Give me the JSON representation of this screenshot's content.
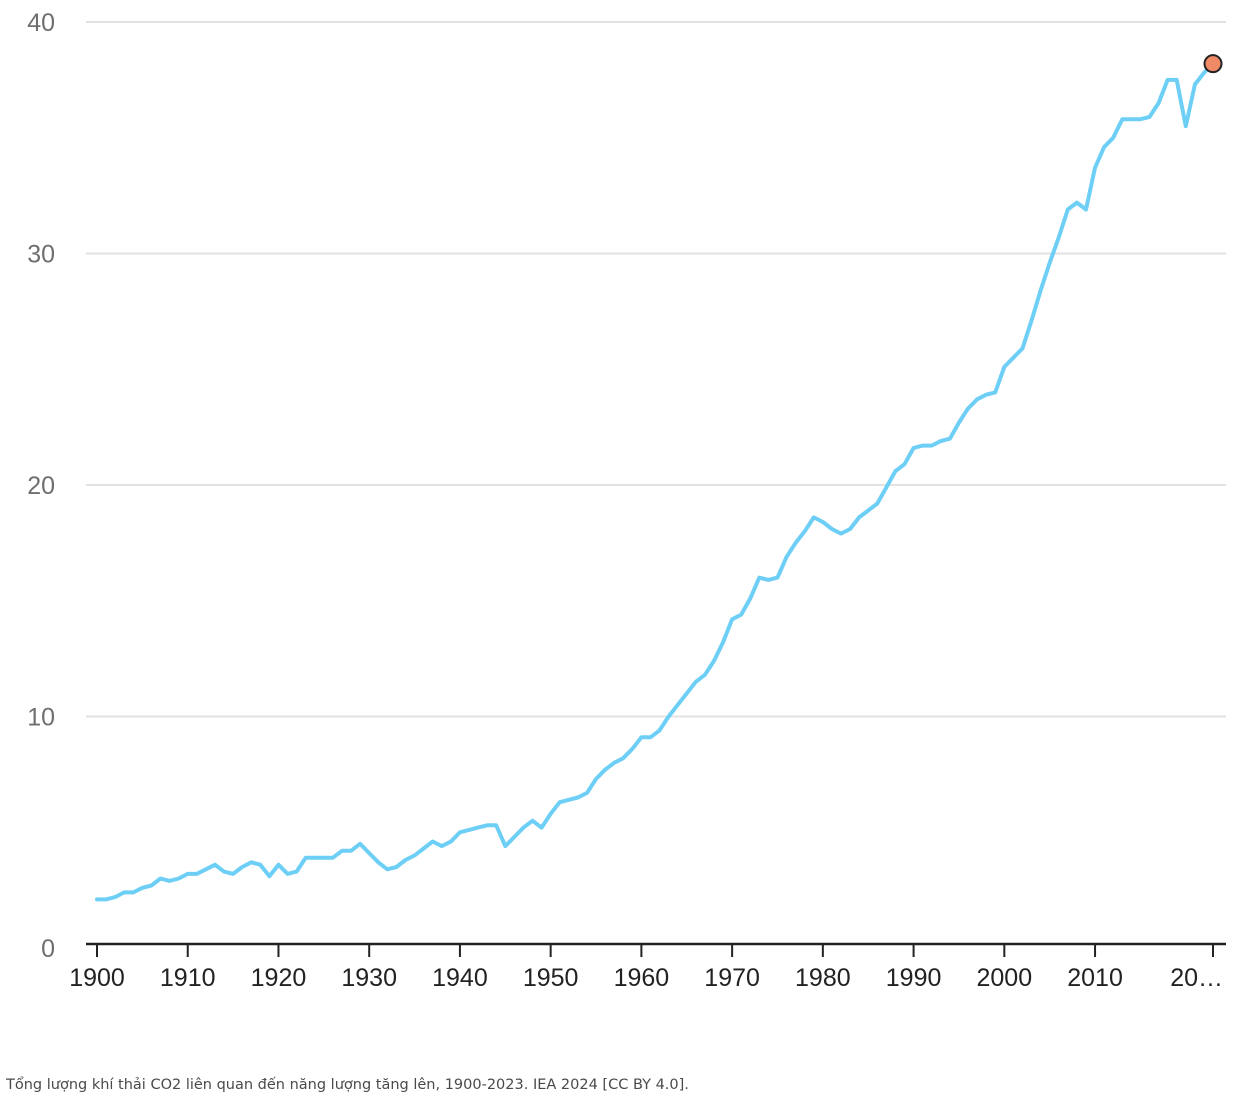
{
  "chart_data": {
    "type": "line",
    "title": "",
    "xlabel": "",
    "ylabel": "",
    "xlim": [
      1900,
      2023
    ],
    "ylim": [
      0,
      40
    ],
    "grid": true,
    "legend": "none",
    "y_ticks": [
      "0",
      "10",
      "20",
      "30",
      "40"
    ],
    "x_ticks": [
      "1900",
      "1910",
      "1920",
      "1930",
      "1940",
      "1950",
      "1960",
      "1970",
      "1980",
      "1990",
      "2000",
      "2010",
      "20…"
    ],
    "line_color": "#6ecff6",
    "marker_color": "#f08a66",
    "series": [
      {
        "x": [
          1900,
          1901,
          1902,
          1903,
          1904,
          1905,
          1906,
          1907,
          1908,
          1909,
          1910,
          1911,
          1912,
          1913,
          1914,
          1915,
          1916,
          1917,
          1918,
          1919,
          1920,
          1921,
          1922,
          1923,
          1924,
          1925,
          1926,
          1927,
          1928,
          1929,
          1930,
          1931,
          1932,
          1933,
          1934,
          1935,
          1936,
          1937,
          1938,
          1939,
          1940,
          1941,
          1942,
          1943,
          1944,
          1945,
          1946,
          1947,
          1948,
          1949,
          1950,
          1951,
          1952,
          1953,
          1954,
          1955,
          1956,
          1957,
          1958,
          1959,
          1960,
          1961,
          1962,
          1963,
          1964,
          1965,
          1966,
          1967,
          1968,
          1969,
          1970,
          1971,
          1972,
          1973,
          1974,
          1975,
          1976,
          1977,
          1978,
          1979,
          1980,
          1981,
          1982,
          1983,
          1984,
          1985,
          1986,
          1987,
          1988,
          1989,
          1990,
          1991,
          1992,
          1993,
          1994,
          1995,
          1996,
          1997,
          1998,
          1999,
          2000,
          2001,
          2002,
          2003,
          2004,
          2005,
          2006,
          2007,
          2008,
          2009,
          2010,
          2011,
          2012,
          2013,
          2014,
          2015,
          2016,
          2017,
          2018,
          2019,
          2020,
          2021,
          2022,
          2023
        ],
        "values": [
          2.1,
          2.1,
          2.2,
          2.4,
          2.4,
          2.6,
          2.7,
          3.0,
          2.9,
          3.0,
          3.2,
          3.2,
          3.4,
          3.6,
          3.3,
          3.2,
          3.5,
          3.7,
          3.6,
          3.1,
          3.6,
          3.2,
          3.3,
          3.9,
          3.9,
          3.9,
          3.9,
          4.2,
          4.2,
          4.5,
          4.1,
          3.7,
          3.4,
          3.5,
          3.8,
          4.0,
          4.3,
          4.6,
          4.4,
          4.6,
          5.0,
          5.1,
          5.2,
          5.3,
          5.3,
          4.4,
          4.8,
          5.2,
          5.5,
          5.2,
          5.8,
          6.3,
          6.4,
          6.5,
          6.7,
          7.3,
          7.7,
          8.0,
          8.2,
          8.6,
          9.1,
          9.1,
          9.4,
          10.0,
          10.5,
          11.0,
          11.5,
          11.8,
          12.4,
          13.2,
          14.2,
          14.4,
          15.1,
          16.0,
          15.9,
          16.0,
          16.9,
          17.5,
          18.0,
          18.6,
          18.4,
          18.1,
          17.9,
          18.1,
          18.6,
          18.9,
          19.2,
          19.9,
          20.6,
          20.9,
          21.6,
          21.7,
          21.7,
          21.9,
          22.0,
          22.7,
          23.3,
          23.7,
          23.9,
          24.0,
          25.1,
          25.5,
          25.9,
          27.1,
          28.4,
          29.6,
          30.7,
          31.9,
          32.2,
          31.9,
          33.7,
          34.6,
          35.0,
          35.8,
          35.8,
          35.8,
          35.9,
          36.5,
          37.5,
          37.5,
          35.5,
          37.3,
          37.8,
          38.2
        ]
      }
    ]
  },
  "caption": "Tổng lượng khí thải CO2 liên quan đến năng lượng tăng lên, 1900-2023. IEA 2024 [CC BY 4.0]."
}
